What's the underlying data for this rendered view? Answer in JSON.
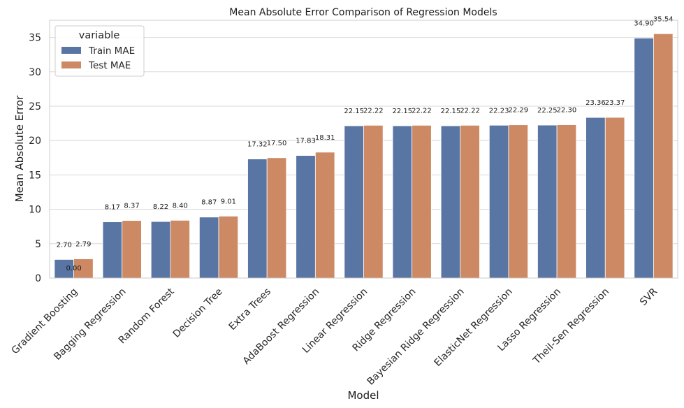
{
  "chart_data": {
    "type": "bar",
    "title": "Mean Absolute Error Comparison of Regression Models",
    "xlabel": "Model",
    "ylabel": "Mean Absolute Error",
    "ylim": [
      0,
      37.5
    ],
    "yticks": [
      0,
      5,
      10,
      15,
      20,
      25,
      30,
      35
    ],
    "grid": true,
    "legend": {
      "title": "variable",
      "placement": "top-left"
    },
    "categories": [
      "Gradient Boosting",
      "Bagging Regression",
      "Random Forest",
      "Decision Tree",
      "Extra Trees",
      "AdaBoost Regression",
      "Linear Regression",
      "Ridge Regression",
      "Bayesian Ridge Regression",
      "ElasticNet Regression",
      "Lasso Regression",
      "Theil-Sen Regression",
      "SVR"
    ],
    "series": [
      {
        "name": "Train MAE",
        "color": "#5875a4",
        "values": [
          2.7,
          8.17,
          8.22,
          8.87,
          17.32,
          17.83,
          22.15,
          22.15,
          22.15,
          22.23,
          22.25,
          23.36,
          34.9
        ],
        "labels": [
          "2.70",
          "8.17",
          "8.22",
          "8.87",
          "17.32",
          "17.83",
          "22.15",
          "22.15",
          "22.15",
          "22.23",
          "22.25",
          "23.36",
          "34.90"
        ]
      },
      {
        "name": "Test MAE",
        "color": "#cc8963",
        "values": [
          2.79,
          8.37,
          8.4,
          9.01,
          17.5,
          18.31,
          22.22,
          22.22,
          22.22,
          22.29,
          22.3,
          23.37,
          35.54
        ],
        "labels": [
          "2.79",
          "8.37",
          "8.40",
          "9.01",
          "17.50",
          "18.31",
          "22.22",
          "22.22",
          "22.22",
          "22.29",
          "22.30",
          "23.37",
          "35.54"
        ]
      }
    ],
    "annotations": [
      {
        "text": "0.00",
        "category": "Gradient Boosting",
        "value": 0
      }
    ]
  }
}
